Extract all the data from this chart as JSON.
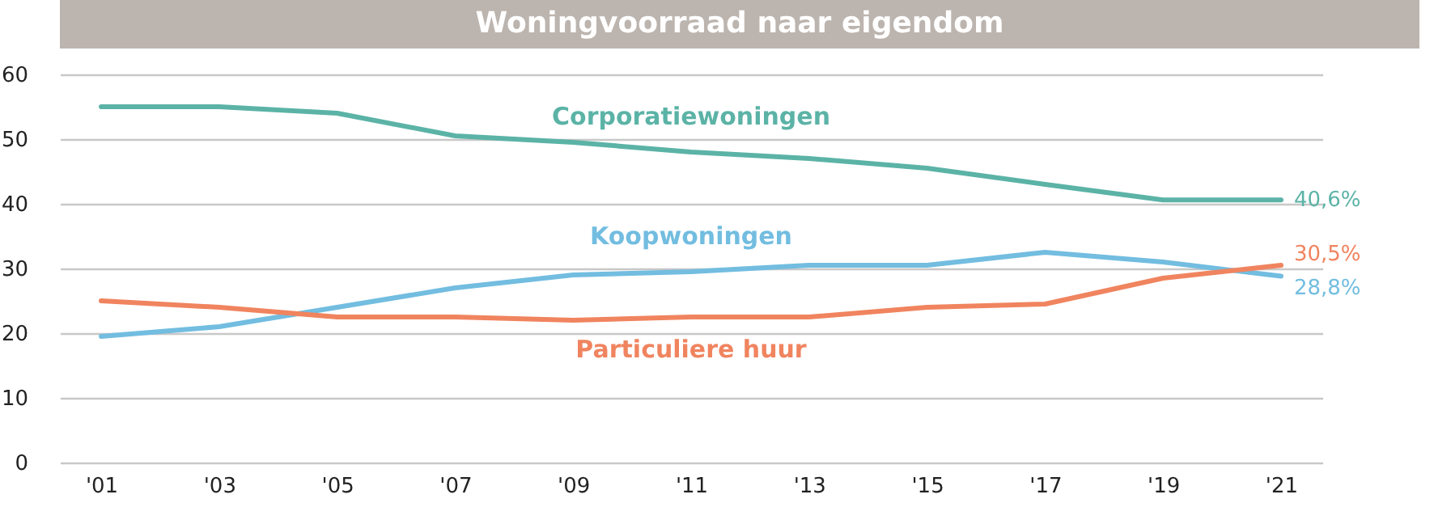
{
  "chart_data": {
    "type": "line",
    "title": "Woningvoorraad naar eigendom",
    "categories": [
      "'01",
      "'03",
      "'05",
      "'07",
      "'09",
      "'11",
      "'13",
      "'15",
      "'17",
      "'19",
      "'21"
    ],
    "series": [
      {
        "name": "Corporatiewoningen",
        "color": "#5bb3a6",
        "values": [
          55.0,
          55.0,
          54.0,
          50.5,
          49.5,
          48.0,
          47.0,
          45.5,
          43.0,
          40.6,
          40.6
        ],
        "value_labels": [
          null,
          null,
          null,
          null,
          null,
          null,
          null,
          null,
          null,
          null,
          "40,6%"
        ]
      },
      {
        "name": "Koopwoningen",
        "color": "#72bde0",
        "values": [
          19.5,
          21.0,
          24.0,
          27.0,
          29.0,
          29.5,
          30.5,
          30.5,
          32.5,
          31.0,
          28.8
        ],
        "value_labels": [
          null,
          null,
          null,
          null,
          null,
          null,
          null,
          null,
          null,
          null,
          "28,8%"
        ]
      },
      {
        "name": "Particuliere huur",
        "color": "#f0845f",
        "values": [
          25.0,
          24.0,
          22.5,
          22.5,
          22.0,
          22.5,
          22.5,
          24.0,
          24.5,
          28.5,
          30.5
        ],
        "value_labels": [
          null,
          null,
          null,
          null,
          null,
          null,
          null,
          null,
          null,
          null,
          "30,5%"
        ]
      }
    ],
    "ylim": [
      0,
      60
    ],
    "yticks": [
      0,
      10,
      20,
      30,
      40,
      50,
      60
    ],
    "grid": "y",
    "marker": "none",
    "line_style": "solid"
  }
}
